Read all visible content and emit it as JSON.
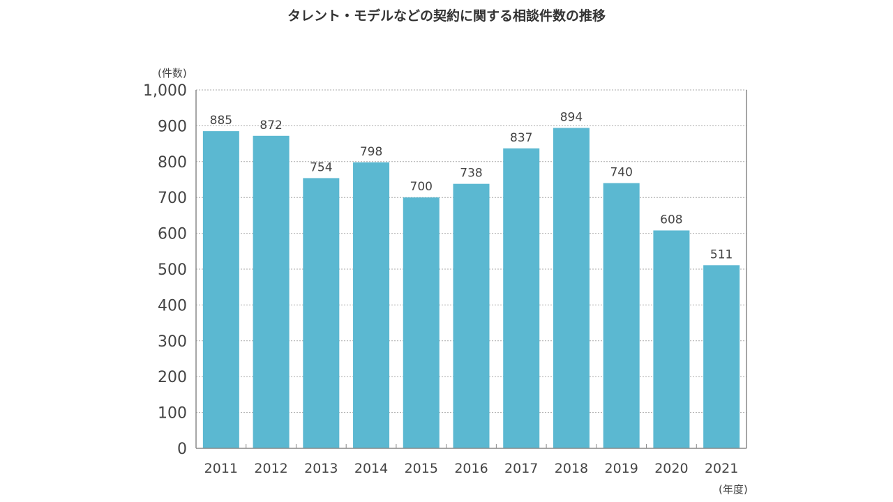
{
  "chart_data": {
    "type": "bar",
    "title": "タレント・モデルなどの契約に関する相談件数の推移",
    "ylabel": "(件数)",
    "xlabel": "(年度)",
    "categories": [
      "2011",
      "2012",
      "2013",
      "2014",
      "2015",
      "2016",
      "2017",
      "2018",
      "2019",
      "2020",
      "2021"
    ],
    "values": [
      885,
      872,
      754,
      798,
      700,
      738,
      837,
      894,
      740,
      608,
      511
    ],
    "ylim": [
      0,
      1000
    ],
    "yticks": [
      0,
      100,
      200,
      300,
      400,
      500,
      600,
      700,
      800,
      900,
      1000
    ],
    "ytick_labels": [
      "0",
      "100",
      "200",
      "300",
      "400",
      "500",
      "600",
      "700",
      "800",
      "900",
      "1,000"
    ],
    "grid": true,
    "bar_color": "#5bb8d1"
  }
}
